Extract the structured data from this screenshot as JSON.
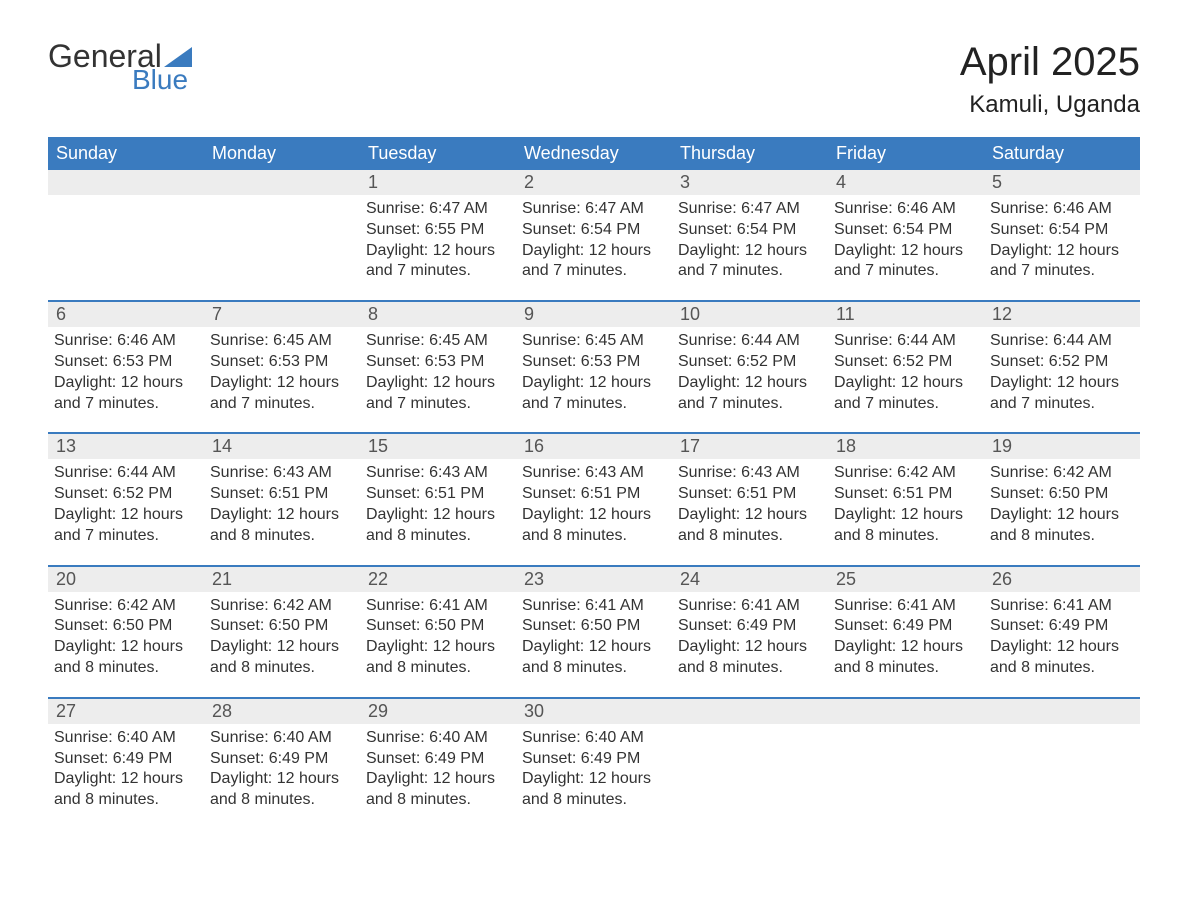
{
  "logo": {
    "text_general": "General",
    "text_blue": "Blue",
    "flag_color": "#3a7bbf"
  },
  "header": {
    "month_title": "April 2025",
    "location": "Kamuli, Uganda"
  },
  "colors": {
    "header_bar_bg": "#3a7bbf",
    "header_bar_text": "#ffffff",
    "day_num_bg": "#ededed",
    "week_divider": "#3a7bbf",
    "body_text": "#333333",
    "background": "#ffffff"
  },
  "weekdays": [
    "Sunday",
    "Monday",
    "Tuesday",
    "Wednesday",
    "Thursday",
    "Friday",
    "Saturday"
  ],
  "weeks": [
    [
      null,
      null,
      {
        "num": "1",
        "sunrise": "Sunrise: 6:47 AM",
        "sunset": "Sunset: 6:55 PM",
        "daylight1": "Daylight: 12 hours",
        "daylight2": "and 7 minutes."
      },
      {
        "num": "2",
        "sunrise": "Sunrise: 6:47 AM",
        "sunset": "Sunset: 6:54 PM",
        "daylight1": "Daylight: 12 hours",
        "daylight2": "and 7 minutes."
      },
      {
        "num": "3",
        "sunrise": "Sunrise: 6:47 AM",
        "sunset": "Sunset: 6:54 PM",
        "daylight1": "Daylight: 12 hours",
        "daylight2": "and 7 minutes."
      },
      {
        "num": "4",
        "sunrise": "Sunrise: 6:46 AM",
        "sunset": "Sunset: 6:54 PM",
        "daylight1": "Daylight: 12 hours",
        "daylight2": "and 7 minutes."
      },
      {
        "num": "5",
        "sunrise": "Sunrise: 6:46 AM",
        "sunset": "Sunset: 6:54 PM",
        "daylight1": "Daylight: 12 hours",
        "daylight2": "and 7 minutes."
      }
    ],
    [
      {
        "num": "6",
        "sunrise": "Sunrise: 6:46 AM",
        "sunset": "Sunset: 6:53 PM",
        "daylight1": "Daylight: 12 hours",
        "daylight2": "and 7 minutes."
      },
      {
        "num": "7",
        "sunrise": "Sunrise: 6:45 AM",
        "sunset": "Sunset: 6:53 PM",
        "daylight1": "Daylight: 12 hours",
        "daylight2": "and 7 minutes."
      },
      {
        "num": "8",
        "sunrise": "Sunrise: 6:45 AM",
        "sunset": "Sunset: 6:53 PM",
        "daylight1": "Daylight: 12 hours",
        "daylight2": "and 7 minutes."
      },
      {
        "num": "9",
        "sunrise": "Sunrise: 6:45 AM",
        "sunset": "Sunset: 6:53 PM",
        "daylight1": "Daylight: 12 hours",
        "daylight2": "and 7 minutes."
      },
      {
        "num": "10",
        "sunrise": "Sunrise: 6:44 AM",
        "sunset": "Sunset: 6:52 PM",
        "daylight1": "Daylight: 12 hours",
        "daylight2": "and 7 minutes."
      },
      {
        "num": "11",
        "sunrise": "Sunrise: 6:44 AM",
        "sunset": "Sunset: 6:52 PM",
        "daylight1": "Daylight: 12 hours",
        "daylight2": "and 7 minutes."
      },
      {
        "num": "12",
        "sunrise": "Sunrise: 6:44 AM",
        "sunset": "Sunset: 6:52 PM",
        "daylight1": "Daylight: 12 hours",
        "daylight2": "and 7 minutes."
      }
    ],
    [
      {
        "num": "13",
        "sunrise": "Sunrise: 6:44 AM",
        "sunset": "Sunset: 6:52 PM",
        "daylight1": "Daylight: 12 hours",
        "daylight2": "and 7 minutes."
      },
      {
        "num": "14",
        "sunrise": "Sunrise: 6:43 AM",
        "sunset": "Sunset: 6:51 PM",
        "daylight1": "Daylight: 12 hours",
        "daylight2": "and 8 minutes."
      },
      {
        "num": "15",
        "sunrise": "Sunrise: 6:43 AM",
        "sunset": "Sunset: 6:51 PM",
        "daylight1": "Daylight: 12 hours",
        "daylight2": "and 8 minutes."
      },
      {
        "num": "16",
        "sunrise": "Sunrise: 6:43 AM",
        "sunset": "Sunset: 6:51 PM",
        "daylight1": "Daylight: 12 hours",
        "daylight2": "and 8 minutes."
      },
      {
        "num": "17",
        "sunrise": "Sunrise: 6:43 AM",
        "sunset": "Sunset: 6:51 PM",
        "daylight1": "Daylight: 12 hours",
        "daylight2": "and 8 minutes."
      },
      {
        "num": "18",
        "sunrise": "Sunrise: 6:42 AM",
        "sunset": "Sunset: 6:51 PM",
        "daylight1": "Daylight: 12 hours",
        "daylight2": "and 8 minutes."
      },
      {
        "num": "19",
        "sunrise": "Sunrise: 6:42 AM",
        "sunset": "Sunset: 6:50 PM",
        "daylight1": "Daylight: 12 hours",
        "daylight2": "and 8 minutes."
      }
    ],
    [
      {
        "num": "20",
        "sunrise": "Sunrise: 6:42 AM",
        "sunset": "Sunset: 6:50 PM",
        "daylight1": "Daylight: 12 hours",
        "daylight2": "and 8 minutes."
      },
      {
        "num": "21",
        "sunrise": "Sunrise: 6:42 AM",
        "sunset": "Sunset: 6:50 PM",
        "daylight1": "Daylight: 12 hours",
        "daylight2": "and 8 minutes."
      },
      {
        "num": "22",
        "sunrise": "Sunrise: 6:41 AM",
        "sunset": "Sunset: 6:50 PM",
        "daylight1": "Daylight: 12 hours",
        "daylight2": "and 8 minutes."
      },
      {
        "num": "23",
        "sunrise": "Sunrise: 6:41 AM",
        "sunset": "Sunset: 6:50 PM",
        "daylight1": "Daylight: 12 hours",
        "daylight2": "and 8 minutes."
      },
      {
        "num": "24",
        "sunrise": "Sunrise: 6:41 AM",
        "sunset": "Sunset: 6:49 PM",
        "daylight1": "Daylight: 12 hours",
        "daylight2": "and 8 minutes."
      },
      {
        "num": "25",
        "sunrise": "Sunrise: 6:41 AM",
        "sunset": "Sunset: 6:49 PM",
        "daylight1": "Daylight: 12 hours",
        "daylight2": "and 8 minutes."
      },
      {
        "num": "26",
        "sunrise": "Sunrise: 6:41 AM",
        "sunset": "Sunset: 6:49 PM",
        "daylight1": "Daylight: 12 hours",
        "daylight2": "and 8 minutes."
      }
    ],
    [
      {
        "num": "27",
        "sunrise": "Sunrise: 6:40 AM",
        "sunset": "Sunset: 6:49 PM",
        "daylight1": "Daylight: 12 hours",
        "daylight2": "and 8 minutes."
      },
      {
        "num": "28",
        "sunrise": "Sunrise: 6:40 AM",
        "sunset": "Sunset: 6:49 PM",
        "daylight1": "Daylight: 12 hours",
        "daylight2": "and 8 minutes."
      },
      {
        "num": "29",
        "sunrise": "Sunrise: 6:40 AM",
        "sunset": "Sunset: 6:49 PM",
        "daylight1": "Daylight: 12 hours",
        "daylight2": "and 8 minutes."
      },
      {
        "num": "30",
        "sunrise": "Sunrise: 6:40 AM",
        "sunset": "Sunset: 6:49 PM",
        "daylight1": "Daylight: 12 hours",
        "daylight2": "and 8 minutes."
      },
      null,
      null,
      null
    ]
  ]
}
